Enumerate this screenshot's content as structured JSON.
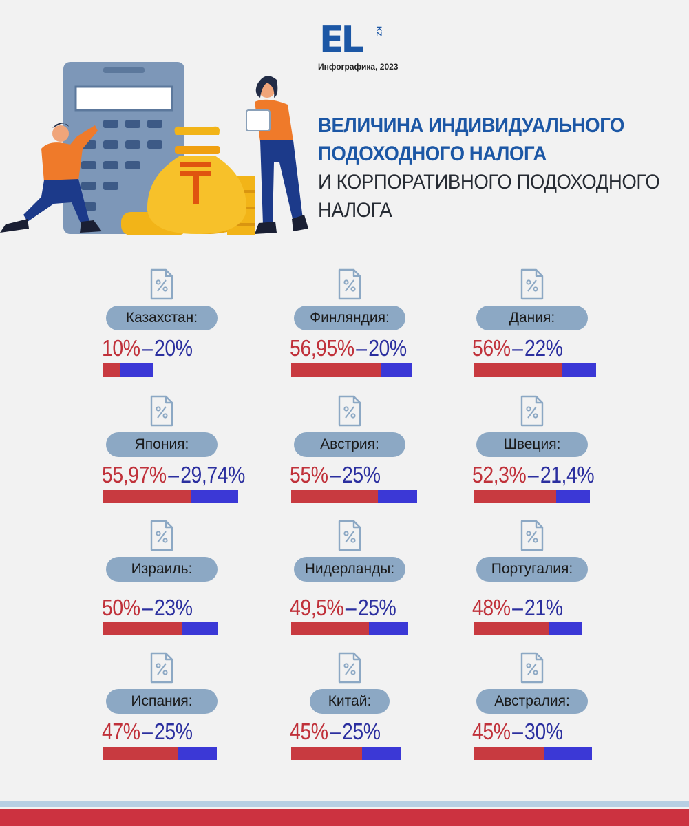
{
  "header": {
    "logo_text": "EL",
    "logo_suffix": "KZ",
    "subtitle": "Инфографика, 2023",
    "title_bold_1": "ВЕЛИЧИНА ИНДИВИДУАЛЬНОГО",
    "title_bold_2": "ПОДОХОДНОГО НАЛОГА",
    "title_normal_1": "И КОРПОРАТИВНОГО ПОДОХОДНОГО",
    "title_normal_2": "НАЛОГА"
  },
  "colors": {
    "individual": "#c83a40",
    "corporate": "#3b38d6",
    "pill": "#8ca8c4",
    "title": "#1c57a5"
  },
  "icon": "percent-document-icon",
  "chart_data": {
    "type": "bar",
    "title": "",
    "categories": [
      "Казахстан:",
      "Финляндия:",
      "Дания:",
      "Япония:",
      "Австрия:",
      "Швеция:",
      "Израиль:",
      "Нидерланды:",
      "Португалия:",
      "Испания:",
      "Китай:",
      "Австралия:"
    ],
    "series": [
      {
        "values": [
          10,
          56.95,
          56,
          55.97,
          55,
          52.3,
          50,
          49.5,
          48,
          47,
          45,
          45
        ]
      },
      {
        "values": [
          20,
          20,
          22,
          29.74,
          25,
          21.4,
          23,
          25,
          21,
          25,
          25,
          30
        ]
      }
    ],
    "labels": [
      [
        "10%",
        "20%"
      ],
      [
        "56,95%",
        "20%"
      ],
      [
        "56%",
        "22%"
      ],
      [
        "55,97%",
        "29,74%"
      ],
      [
        "55%",
        "25%"
      ],
      [
        "52,3%",
        "21,4%"
      ],
      [
        "50%",
        "23%"
      ],
      [
        "49,5%",
        "25%"
      ],
      [
        "48%",
        "21%"
      ],
      [
        "47%",
        "25%"
      ],
      [
        "45%",
        "25%"
      ],
      [
        "45%",
        "30%"
      ]
    ],
    "separator": "–",
    "stacked": true
  }
}
